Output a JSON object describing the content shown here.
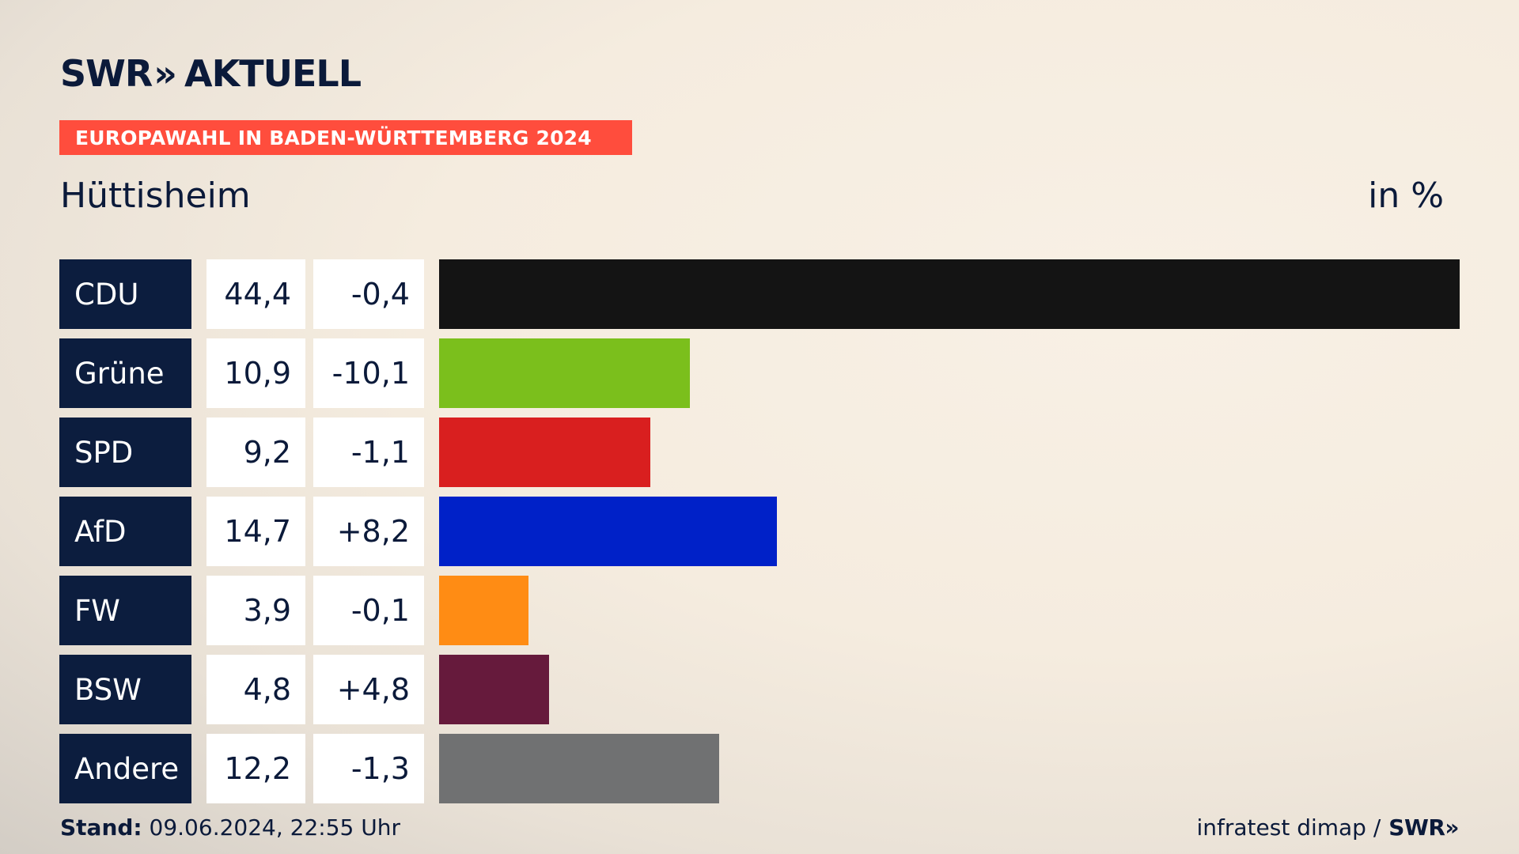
{
  "header": {
    "logo_brand": "SWR",
    "logo_chevrons": "»",
    "logo_product": "AKTUELL",
    "banner": "EUROPAWAHL IN BADEN-WÜRTTEMBERG 2024",
    "place": "Hüttisheim",
    "unit": "in %"
  },
  "rows": [
    {
      "party": "CDU",
      "value": "44,4",
      "diff": "-0,4"
    },
    {
      "party": "Grüne",
      "value": "10,9",
      "diff": "-10,1"
    },
    {
      "party": "SPD",
      "value": "9,2",
      "diff": "-1,1"
    },
    {
      "party": "AfD",
      "value": "14,7",
      "diff": "+8,2"
    },
    {
      "party": "FW",
      "value": "3,9",
      "diff": "-0,1"
    },
    {
      "party": "BSW",
      "value": "4,8",
      "diff": "+4,8"
    },
    {
      "party": "Andere",
      "value": "12,2",
      "diff": "-1,3"
    }
  ],
  "chart_data": {
    "type": "bar",
    "orientation": "horizontal",
    "categories": [
      "CDU",
      "Grüne",
      "SPD",
      "AfD",
      "FW",
      "BSW",
      "Andere"
    ],
    "values": [
      44.4,
      10.9,
      9.2,
      14.7,
      3.9,
      4.8,
      12.2
    ],
    "changes": [
      -0.4,
      -10.1,
      -1.1,
      8.2,
      -0.1,
      4.8,
      -1.3
    ],
    "colors": [
      "#141414",
      "#7bbf1c",
      "#d91f1f",
      "#0021c8",
      "#ff8c14",
      "#661a3c",
      "#707172"
    ],
    "xlim": [
      0,
      44.4
    ],
    "grid": false
  },
  "footer": {
    "stand_label": "Stand:",
    "stand_value": "09.06.2024, 22:55 Uhr",
    "source": "infratest dimap /",
    "source_brand": "SWR»"
  }
}
